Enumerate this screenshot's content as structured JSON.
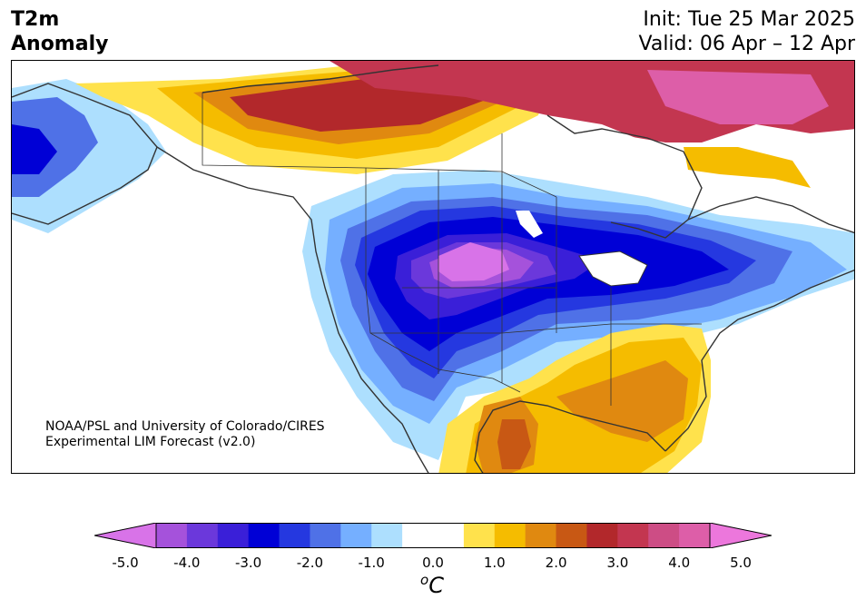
{
  "title": {
    "left_line1": "T2m",
    "left_line2": "Anomaly",
    "right_line1": "Init: Tue 25 Mar 2025",
    "right_line2": "Valid: 06 Apr – 12 Apr"
  },
  "credit": {
    "line1": "NOAA/PSL and University of Colorado/CIRES",
    "line2": "Experimental LIM Forecast (v2.0)"
  },
  "colorbar": {
    "unit_base": "C",
    "unit_sup": "o",
    "ticks": [
      "-5.0",
      "-4.0",
      "-3.0",
      "-2.0",
      "-1.0",
      "0.0",
      "1.0",
      "2.0",
      "3.0",
      "4.0",
      "5.0"
    ],
    "colors": [
      "#d873e8",
      "#a552db",
      "#6b38db",
      "#3a1fd8",
      "#0000d6",
      "#2538e0",
      "#4f71e7",
      "#75afff",
      "#addffe",
      "#ffffff",
      "#ffffff",
      "#ffe24c",
      "#f5bc00",
      "#e08910",
      "#c85814",
      "#b2282b",
      "#c33650",
      "#cd4d85",
      "#dd5ea8",
      "#ec77dc"
    ]
  }
}
